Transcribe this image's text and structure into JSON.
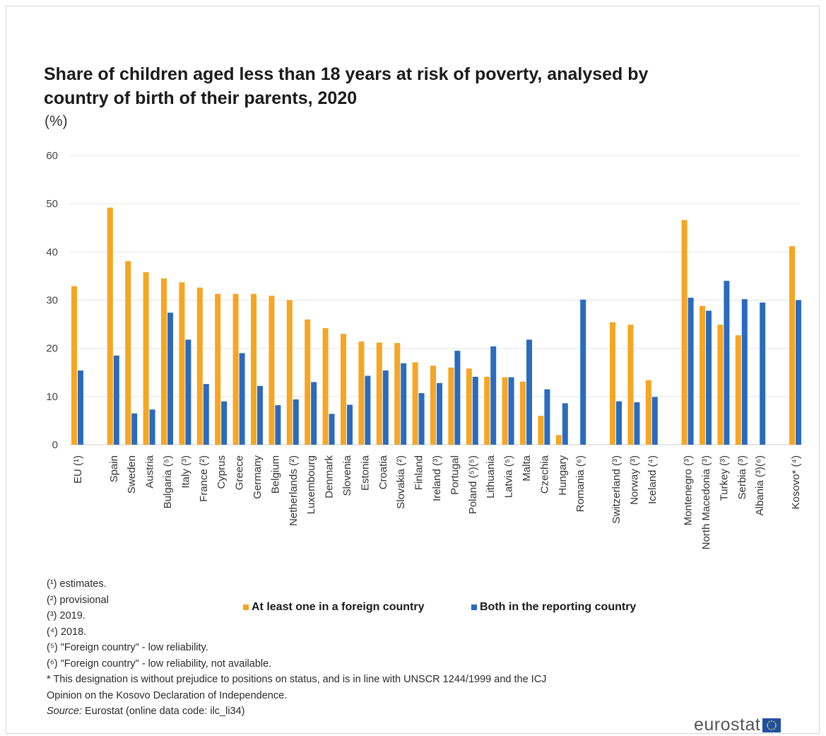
{
  "title": "Share of children aged less than 18 years at risk of poverty, analysed by country of birth of their parents, 2020",
  "unit": "(%)",
  "colors": {
    "foreign": "#f5a623",
    "reporting": "#2a6bbf",
    "grid": "#e4e4e4"
  },
  "legend": {
    "foreign": "At least one in a foreign country",
    "reporting": "Both in the reporting country"
  },
  "footnotes": [
    "(¹) estimates.",
    "(²) provisional",
    "(³) 2019.",
    "(⁴) 2018.",
    "(⁵) \"Foreign country\" - low reliability.",
    "(⁶) \"Foreign country\" - low reliability, not available.",
    "* This designation is without prejudice to positions on status, and is in line with UNSCR 1244/1999 and the ICJ",
    "Opinion on the Kosovo Declaration of Independence."
  ],
  "source": {
    "label": "Source:",
    "text": "Eurostat (online data code: ilc_li34)"
  },
  "logo": {
    "text": "eurostat",
    "icon": "eu-flag-icon"
  },
  "chart_data": {
    "type": "bar",
    "ylim": [
      0,
      60
    ],
    "yticks": [
      0,
      10,
      20,
      30,
      40,
      50,
      60
    ],
    "grid": true,
    "legend_position": "bottom",
    "groups": [
      [
        "EU (¹)"
      ],
      [
        "Spain",
        "Sweden",
        "Austria",
        "Bulgaria (⁵)",
        "Italy (³)",
        "France (²)",
        "Cyprus",
        "Greece",
        "Germany",
        "Belgium",
        "Netherlands (²)",
        "Luxembourg",
        "Denmark",
        "Slovenia",
        "Estonia",
        "Croatia",
        "Slovakia (²)",
        "Finland",
        "Ireland (³)",
        "Portugal",
        "Poland (⁵)(⁵)",
        "Lithuania",
        "Latvia (⁵)",
        "Malta",
        "Czechia",
        "Hungary",
        "Romania (⁶)"
      ],
      [
        "Switzerland (³)",
        "Norway (³)",
        "Iceland (⁴)"
      ],
      [
        "Montenegro (³)",
        "North Macedonia (³)",
        "Turkey (³)",
        "Serbia (³)",
        "Albania (³)(⁶)"
      ],
      [
        "Kosovo* (⁴)"
      ]
    ],
    "series": [
      {
        "name": "At least one in a foreign country",
        "values": [
          32.9,
          49.2,
          38.1,
          35.8,
          34.5,
          33.7,
          32.6,
          31.3,
          31.3,
          31.3,
          30.9,
          30.0,
          26.0,
          24.2,
          23.0,
          21.4,
          21.2,
          21.1,
          17.1,
          16.4,
          16.0,
          15.8,
          14.1,
          14.0,
          13.1,
          6.0,
          2.0,
          null,
          25.4,
          24.9,
          13.4,
          46.6,
          28.8,
          24.9,
          22.7,
          null,
          41.2
        ]
      },
      {
        "name": "Both in the reporting country",
        "values": [
          15.4,
          18.5,
          6.5,
          7.3,
          27.4,
          21.8,
          12.6,
          9.0,
          19.0,
          12.2,
          8.2,
          9.4,
          13.0,
          6.4,
          8.3,
          14.3,
          15.4,
          16.9,
          10.7,
          12.8,
          19.5,
          14.1,
          20.4,
          14.0,
          21.8,
          11.5,
          8.6,
          30.1,
          9.0,
          8.8,
          9.9,
          30.5,
          27.8,
          34.0,
          30.2,
          29.5,
          30.0
        ]
      }
    ]
  }
}
